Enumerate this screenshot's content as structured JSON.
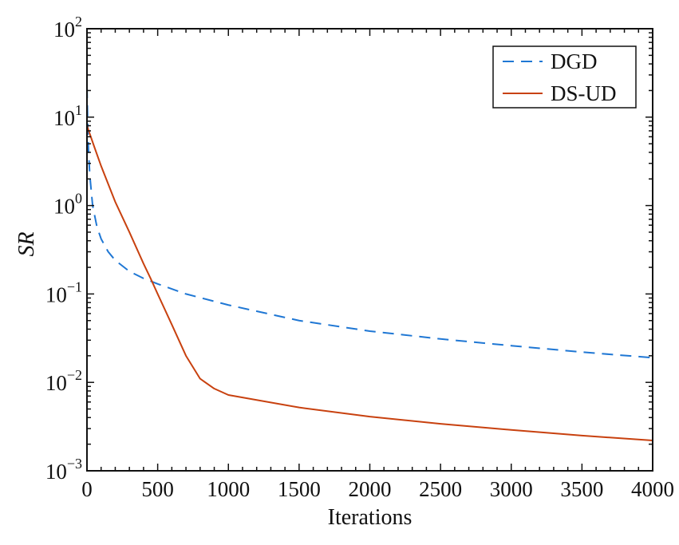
{
  "chart_data": {
    "type": "line",
    "title": "",
    "xlabel": "Iterations",
    "ylabel": "SR",
    "yscale": "log",
    "xlim": [
      0,
      4000
    ],
    "ylim": [
      0.001,
      100
    ],
    "x_ticks": [
      0,
      500,
      1000,
      1500,
      2000,
      2500,
      3000,
      3500,
      4000
    ],
    "x_tick_labels": [
      "0",
      "500",
      "1000",
      "1500",
      "2000",
      "2500",
      "3000",
      "3500",
      "4000"
    ],
    "y_ticks": [
      0.001,
      0.01,
      0.1,
      1,
      10,
      100
    ],
    "y_tick_labels": [
      {
        "base": "10",
        "exp": "−3"
      },
      {
        "base": "10",
        "exp": "−2"
      },
      {
        "base": "10",
        "exp": "−1"
      },
      {
        "base": "10",
        "exp": "0"
      },
      {
        "base": "10",
        "exp": "1"
      },
      {
        "base": "10",
        "exp": "2"
      }
    ],
    "grid": false,
    "legend_position": "top-right",
    "series": [
      {
        "name": "DGD",
        "color": "#1f77d4",
        "style": "dashed",
        "points": [
          [
            0,
            22
          ],
          [
            5,
            9
          ],
          [
            10,
            4.5
          ],
          [
            20,
            2.2
          ],
          [
            40,
            1.0
          ],
          [
            70,
            0.58
          ],
          [
            100,
            0.42
          ],
          [
            150,
            0.3
          ],
          [
            200,
            0.24
          ],
          [
            300,
            0.18
          ],
          [
            400,
            0.15
          ],
          [
            500,
            0.13
          ],
          [
            700,
            0.1
          ],
          [
            1000,
            0.075
          ],
          [
            1500,
            0.05
          ],
          [
            2000,
            0.038
          ],
          [
            2500,
            0.031
          ],
          [
            3000,
            0.026
          ],
          [
            3500,
            0.022
          ],
          [
            4000,
            0.019
          ]
        ]
      },
      {
        "name": "DS-UD",
        "color": "#c8410f",
        "style": "solid",
        "points": [
          [
            0,
            8
          ],
          [
            50,
            4.7
          ],
          [
            100,
            2.8
          ],
          [
            200,
            1.1
          ],
          [
            300,
            0.5
          ],
          [
            400,
            0.22
          ],
          [
            450,
            0.15
          ],
          [
            500,
            0.1
          ],
          [
            600,
            0.045
          ],
          [
            700,
            0.02
          ],
          [
            800,
            0.011
          ],
          [
            900,
            0.0085
          ],
          [
            1000,
            0.0072
          ],
          [
            1500,
            0.0052
          ],
          [
            2000,
            0.0041
          ],
          [
            2500,
            0.0034
          ],
          [
            3000,
            0.0029
          ],
          [
            3500,
            0.0025
          ],
          [
            4000,
            0.0022
          ]
        ]
      }
    ]
  }
}
